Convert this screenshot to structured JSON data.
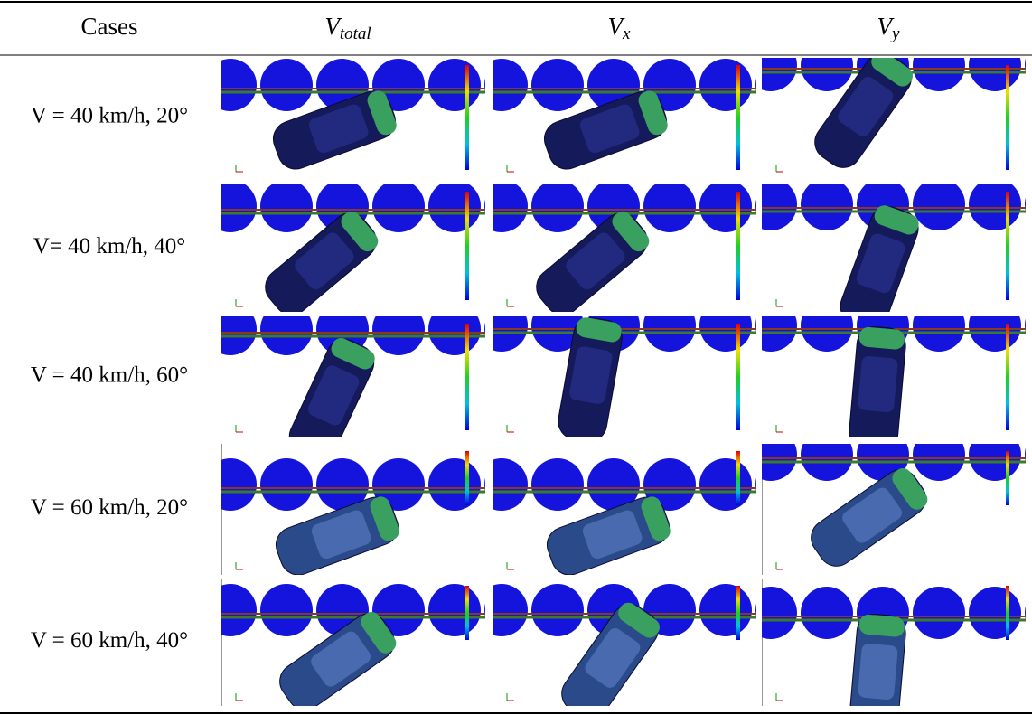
{
  "table": {
    "header": [
      "Cases",
      {
        "symbol": "V",
        "subscript": "total"
      },
      {
        "symbol": "V",
        "subscript": "x"
      },
      {
        "symbol": "V",
        "subscript": "y"
      }
    ],
    "rows": [
      "V = 40 km/h, 20°",
      "V= 40 km/h, 40°",
      "V = 40 km/h, 60°",
      "V = 60 km/h, 20°",
      "V = 60 km/h, 40°"
    ]
  }
}
